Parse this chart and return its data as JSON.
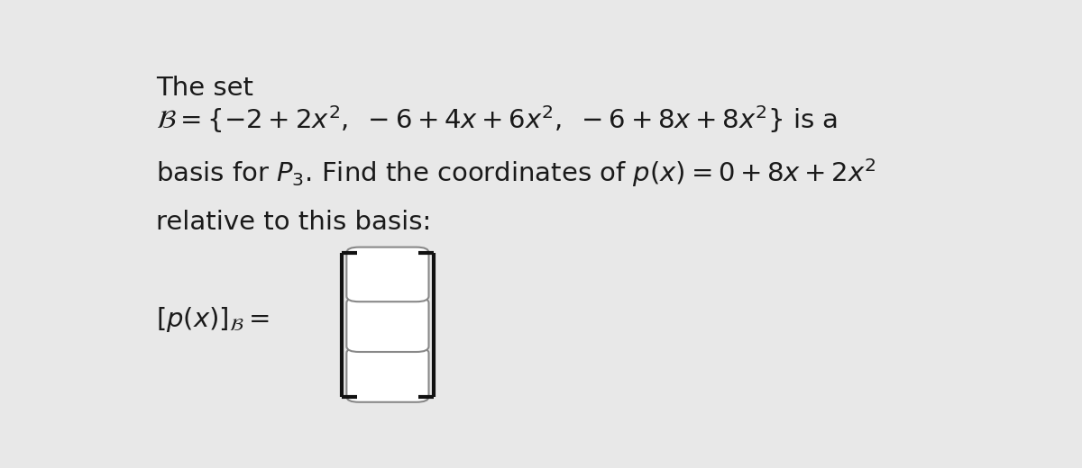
{
  "background_color": "#e8e8e8",
  "text_color": "#1a1a1a",
  "line1": "The set",
  "line2": "$\\mathcal{B} = \\{-2 + 2x^2, \\ -6 + 4x + 6x^2, \\ -6 + 8x + 8x^2\\}$ is a",
  "line3": "basis for $P_3$. Find the coordinates of $p(x) = 0 + 8x + 2x^2$",
  "line4": "relative to this basis:",
  "label_text": "$[p(x)]_{\\mathcal{B}} =$",
  "fontsize_main": 21,
  "fontsize_label": 21,
  "cell_color": "white",
  "cell_edge_color": "#888888",
  "bracket_color": "#111111",
  "bracket_linewidth": 3.0
}
